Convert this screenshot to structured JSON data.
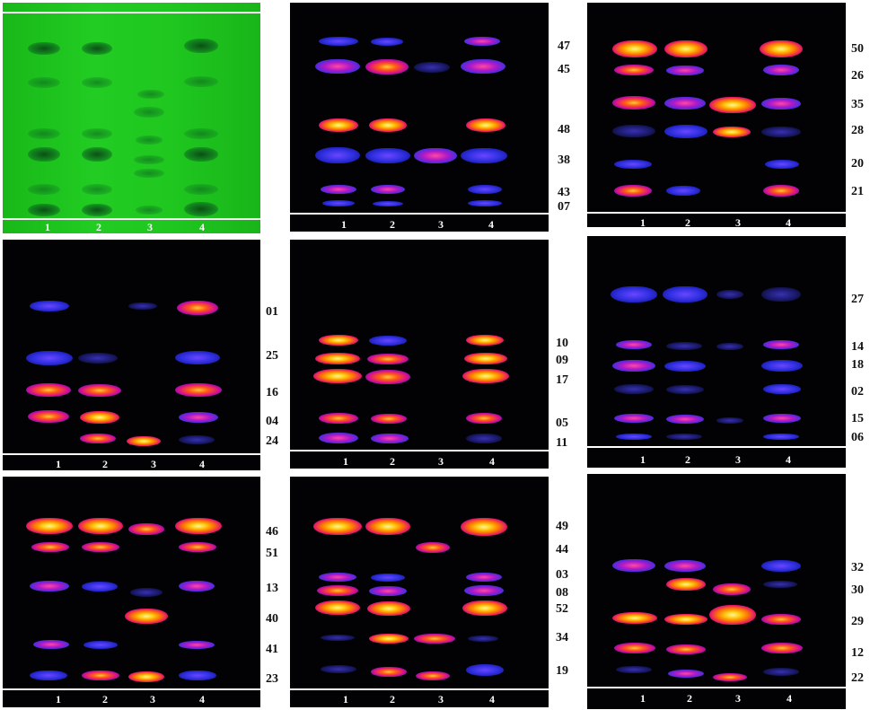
{
  "lanes": [
    "1",
    "2",
    "3",
    "4"
  ],
  "panels": [
    {
      "id": "p1",
      "labels": []
    },
    {
      "id": "p2",
      "labels": [
        "47",
        "45",
        "48",
        "38",
        "43",
        "07"
      ]
    },
    {
      "id": "p3",
      "labels": [
        "50",
        "26",
        "35",
        "28",
        "20",
        "21"
      ]
    },
    {
      "id": "p4",
      "labels": [
        "01",
        "25",
        "16",
        "04",
        "24"
      ]
    },
    {
      "id": "p5",
      "labels": [
        "10",
        "09",
        "17",
        "05",
        "11"
      ]
    },
    {
      "id": "p6",
      "labels": [
        "27",
        "14",
        "18",
        "02",
        "15",
        "06"
      ]
    },
    {
      "id": "p7",
      "labels": [
        "46",
        "51",
        "13",
        "40",
        "41",
        "23"
      ]
    },
    {
      "id": "p8",
      "labels": [
        "49",
        "44",
        "03",
        "08",
        "52",
        "34",
        "19"
      ]
    },
    {
      "id": "p9",
      "labels": [
        "32",
        "30",
        "29",
        "12",
        "22"
      ]
    }
  ]
}
